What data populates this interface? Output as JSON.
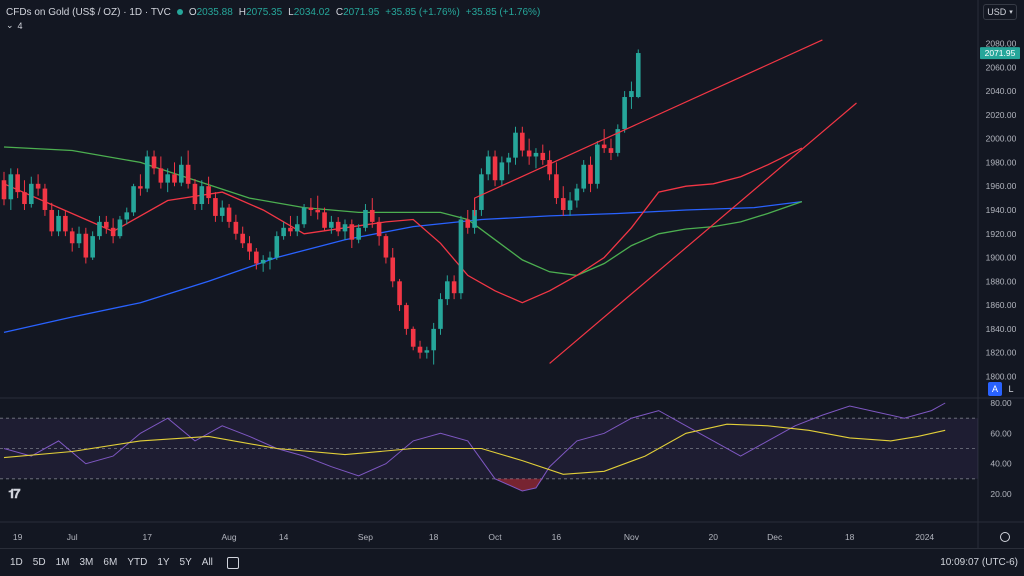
{
  "header": {
    "title": "CFDs on Gold (US$ / OZ) · 1D · TVC",
    "open_label": "O",
    "open": "2035.88",
    "high_label": "H",
    "high": "2075.35",
    "low_label": "L",
    "low": "2034.02",
    "close_label": "C",
    "close": "2071.95",
    "change": "+35.85 (+1.76%)",
    "change2": "+35.85 (+1.76%)",
    "indicator_count": "4",
    "currency": "USD"
  },
  "scale_buttons": {
    "auto": "A",
    "log": "L"
  },
  "ranges": [
    "1D",
    "5D",
    "1M",
    "3M",
    "6M",
    "YTD",
    "1Y",
    "5Y",
    "All"
  ],
  "clock": "10:09:07 (UTC-6)",
  "colors": {
    "up": "#26a69a",
    "down": "#f23645",
    "ma_fast": "#f23645",
    "ma_mid": "#4caf50",
    "ma_slow": "#2962ff",
    "rsi": "#7e57c2",
    "rsi_ma": "#e2cf39",
    "trendline": "#f23645"
  },
  "chart_data": [
    {
      "type": "candlestick",
      "yticks": [
        1800,
        1820,
        1840,
        1860,
        1880,
        1900,
        1920,
        1940,
        1960,
        1980,
        2000,
        2020,
        2040,
        2060,
        2080
      ],
      "ylim": [
        1797,
        2088
      ],
      "last_price": "2071.95",
      "xticks": [
        {
          "label": "19",
          "t": 2
        },
        {
          "label": "Jul",
          "t": 10
        },
        {
          "label": "17",
          "t": 21
        },
        {
          "label": "Aug",
          "t": 33
        },
        {
          "label": "14",
          "t": 41
        },
        {
          "label": "Sep",
          "t": 53
        },
        {
          "label": "18",
          "t": 63
        },
        {
          "label": "Oct",
          "t": 72
        },
        {
          "label": "16",
          "t": 81
        },
        {
          "label": "Nov",
          "t": 92
        },
        {
          "label": "20",
          "t": 104
        },
        {
          "label": "Dec",
          "t": 113
        },
        {
          "label": "18",
          "t": 124
        },
        {
          "label": "2024",
          "t": 135
        }
      ],
      "candles": [
        [
          1965,
          1972,
          1944,
          1949
        ],
        [
          1949,
          1975,
          1940,
          1970
        ],
        [
          1970,
          1975,
          1950,
          1955
        ],
        [
          1955,
          1965,
          1940,
          1945
        ],
        [
          1945,
          1968,
          1942,
          1962
        ],
        [
          1962,
          1970,
          1952,
          1958
        ],
        [
          1958,
          1962,
          1935,
          1940
        ],
        [
          1940,
          1946,
          1918,
          1922
        ],
        [
          1922,
          1940,
          1918,
          1935
        ],
        [
          1935,
          1940,
          1918,
          1922
        ],
        [
          1922,
          1925,
          1905,
          1912
        ],
        [
          1912,
          1926,
          1908,
          1920
        ],
        [
          1920,
          1925,
          1895,
          1900
        ],
        [
          1900,
          1922,
          1898,
          1918
        ],
        [
          1918,
          1935,
          1915,
          1930
        ],
        [
          1930,
          1935,
          1920,
          1925
        ],
        [
          1925,
          1933,
          1912,
          1918
        ],
        [
          1918,
          1935,
          1916,
          1932
        ],
        [
          1932,
          1942,
          1928,
          1938
        ],
        [
          1938,
          1962,
          1935,
          1960
        ],
        [
          1960,
          1970,
          1952,
          1958
        ],
        [
          1958,
          1990,
          1955,
          1985
        ],
        [
          1985,
          1990,
          1970,
          1975
        ],
        [
          1975,
          1985,
          1958,
          1963
        ],
        [
          1963,
          1975,
          1955,
          1970
        ],
        [
          1970,
          1980,
          1960,
          1963
        ],
        [
          1963,
          1985,
          1960,
          1978
        ],
        [
          1978,
          1990,
          1958,
          1962
        ],
        [
          1962,
          1966,
          1940,
          1945
        ],
        [
          1945,
          1965,
          1940,
          1960
        ],
        [
          1960,
          1968,
          1945,
          1950
        ],
        [
          1950,
          1955,
          1930,
          1935
        ],
        [
          1935,
          1948,
          1930,
          1942
        ],
        [
          1942,
          1945,
          1925,
          1930
        ],
        [
          1930,
          1936,
          1915,
          1920
        ],
        [
          1920,
          1926,
          1908,
          1912
        ],
        [
          1912,
          1918,
          1898,
          1905
        ],
        [
          1905,
          1908,
          1890,
          1895
        ],
        [
          1895,
          1902,
          1888,
          1898
        ],
        [
          1898,
          1905,
          1890,
          1900
        ],
        [
          1900,
          1922,
          1898,
          1918
        ],
        [
          1918,
          1930,
          1915,
          1925
        ],
        [
          1925,
          1935,
          1918,
          1922
        ],
        [
          1922,
          1935,
          1918,
          1928
        ],
        [
          1928,
          1945,
          1925,
          1942
        ],
        [
          1942,
          1950,
          1935,
          1940
        ],
        [
          1940,
          1952,
          1932,
          1938
        ],
        [
          1938,
          1942,
          1922,
          1925
        ],
        [
          1925,
          1935,
          1920,
          1930
        ],
        [
          1930,
          1934,
          1918,
          1922
        ],
        [
          1922,
          1932,
          1915,
          1928
        ],
        [
          1928,
          1932,
          1908,
          1915
        ],
        [
          1915,
          1928,
          1912,
          1925
        ],
        [
          1925,
          1945,
          1922,
          1940
        ],
        [
          1940,
          1950,
          1925,
          1930
        ],
        [
          1930,
          1934,
          1910,
          1918
        ],
        [
          1918,
          1920,
          1895,
          1900
        ],
        [
          1900,
          1908,
          1875,
          1880
        ],
        [
          1880,
          1882,
          1855,
          1860
        ],
        [
          1860,
          1862,
          1835,
          1840
        ],
        [
          1840,
          1842,
          1822,
          1825
        ],
        [
          1825,
          1830,
          1815,
          1820
        ],
        [
          1820,
          1825,
          1815,
          1822
        ],
        [
          1822,
          1845,
          1810,
          1840
        ],
        [
          1840,
          1870,
          1835,
          1865
        ],
        [
          1865,
          1885,
          1860,
          1880
        ],
        [
          1880,
          1885,
          1865,
          1870
        ],
        [
          1870,
          1935,
          1865,
          1932
        ],
        [
          1932,
          1940,
          1920,
          1925
        ],
        [
          1925,
          1945,
          1920,
          1940
        ],
        [
          1940,
          1975,
          1935,
          1970
        ],
        [
          1970,
          1990,
          1965,
          1985
        ],
        [
          1985,
          1990,
          1960,
          1965
        ],
        [
          1965,
          1985,
          1960,
          1980
        ],
        [
          1980,
          1988,
          1970,
          1984
        ],
        [
          1984,
          2010,
          1978,
          2005
        ],
        [
          2005,
          2010,
          1985,
          1990
        ],
        [
          1990,
          2000,
          1978,
          1985
        ],
        [
          1985,
          1992,
          1975,
          1988
        ],
        [
          1988,
          1995,
          1978,
          1982
        ],
        [
          1982,
          1990,
          1965,
          1970
        ],
        [
          1970,
          1980,
          1945,
          1950
        ],
        [
          1950,
          1960,
          1935,
          1940
        ],
        [
          1940,
          1955,
          1935,
          1948
        ],
        [
          1948,
          1962,
          1942,
          1958
        ],
        [
          1958,
          1982,
          1955,
          1978
        ],
        [
          1978,
          1985,
          1955,
          1962
        ],
        [
          1962,
          1998,
          1958,
          1995
        ],
        [
          1995,
          2008,
          1988,
          1992
        ],
        [
          1992,
          2000,
          1982,
          1988
        ],
        [
          1988,
          2012,
          1985,
          2008
        ],
        [
          2008,
          2040,
          2005,
          2035
        ],
        [
          2035,
          2048,
          2025,
          2040
        ],
        [
          2035,
          2075,
          2034,
          2072
        ]
      ],
      "ma_fast": [
        [
          0,
          1962
        ],
        [
          8,
          1942
        ],
        [
          16,
          1922
        ],
        [
          24,
          1948
        ],
        [
          32,
          1955
        ],
        [
          38,
          1940
        ],
        [
          44,
          1920
        ],
        [
          50,
          1925
        ],
        [
          56,
          1930
        ],
        [
          60,
          1932
        ],
        [
          64,
          1912
        ],
        [
          68,
          1885
        ],
        [
          72,
          1872
        ],
        [
          76,
          1862
        ],
        [
          80,
          1872
        ],
        [
          84,
          1885
        ],
        [
          88,
          1900
        ],
        [
          92,
          1925
        ],
        [
          96,
          1955
        ],
        [
          100,
          1960
        ],
        [
          104,
          1962
        ],
        [
          108,
          1968
        ],
        [
          112,
          1978
        ],
        [
          117,
          1992
        ]
      ],
      "ma_mid": [
        [
          0,
          1993
        ],
        [
          10,
          1990
        ],
        [
          20,
          1980
        ],
        [
          28,
          1965
        ],
        [
          36,
          1950
        ],
        [
          44,
          1942
        ],
        [
          52,
          1938
        ],
        [
          60,
          1938
        ],
        [
          64,
          1938
        ],
        [
          68,
          1932
        ],
        [
          72,
          1915
        ],
        [
          76,
          1898
        ],
        [
          80,
          1888
        ],
        [
          84,
          1885
        ],
        [
          88,
          1895
        ],
        [
          92,
          1910
        ],
        [
          96,
          1920
        ],
        [
          100,
          1924
        ],
        [
          104,
          1926
        ],
        [
          108,
          1930
        ],
        [
          112,
          1937
        ],
        [
          117,
          1947
        ]
      ],
      "ma_slow": [
        [
          0,
          1837
        ],
        [
          10,
          1850
        ],
        [
          20,
          1862
        ],
        [
          30,
          1880
        ],
        [
          40,
          1900
        ],
        [
          50,
          1915
        ],
        [
          60,
          1926
        ],
        [
          70,
          1932
        ],
        [
          80,
          1935
        ],
        [
          90,
          1937
        ],
        [
          100,
          1940
        ],
        [
          110,
          1942
        ],
        [
          117,
          1947
        ]
      ],
      "trendlines": [
        [
          [
            69,
            1935
          ],
          [
            69,
            1950
          ],
          [
            120,
            2083
          ]
        ],
        [
          [
            80,
            1811
          ],
          [
            125,
            2030
          ]
        ]
      ]
    },
    {
      "type": "line",
      "series_rsi": [
        [
          0,
          50
        ],
        [
          4,
          45
        ],
        [
          8,
          55
        ],
        [
          12,
          40
        ],
        [
          16,
          45
        ],
        [
          20,
          60
        ],
        [
          24,
          70
        ],
        [
          28,
          55
        ],
        [
          32,
          65
        ],
        [
          36,
          58
        ],
        [
          40,
          50
        ],
        [
          44,
          45
        ],
        [
          48,
          38
        ],
        [
          52,
          32
        ],
        [
          56,
          40
        ],
        [
          60,
          55
        ],
        [
          64,
          60
        ],
        [
          68,
          55
        ],
        [
          72,
          30
        ],
        [
          76,
          22
        ],
        [
          78,
          24
        ],
        [
          80,
          38
        ],
        [
          84,
          55
        ],
        [
          88,
          60
        ],
        [
          92,
          70
        ],
        [
          96,
          75
        ],
        [
          100,
          65
        ],
        [
          104,
          55
        ],
        [
          108,
          45
        ],
        [
          112,
          55
        ],
        [
          116,
          65
        ],
        [
          120,
          72
        ],
        [
          124,
          78
        ],
        [
          128,
          74
        ],
        [
          132,
          70
        ],
        [
          136,
          75
        ],
        [
          138,
          80
        ]
      ],
      "series_rsi_ma": [
        [
          0,
          44
        ],
        [
          10,
          48
        ],
        [
          20,
          55
        ],
        [
          30,
          58
        ],
        [
          40,
          50
        ],
        [
          50,
          46
        ],
        [
          60,
          50
        ],
        [
          70,
          50
        ],
        [
          76,
          42
        ],
        [
          82,
          33
        ],
        [
          88,
          35
        ],
        [
          94,
          45
        ],
        [
          100,
          60
        ],
        [
          106,
          66
        ],
        [
          112,
          65
        ],
        [
          118,
          62
        ],
        [
          124,
          57
        ],
        [
          130,
          55
        ],
        [
          134,
          58
        ],
        [
          138,
          62
        ]
      ],
      "yticks": [
        20,
        40,
        60,
        80
      ],
      "ylim": [
        20,
        80
      ],
      "levels": [
        70,
        50,
        30
      ]
    }
  ]
}
